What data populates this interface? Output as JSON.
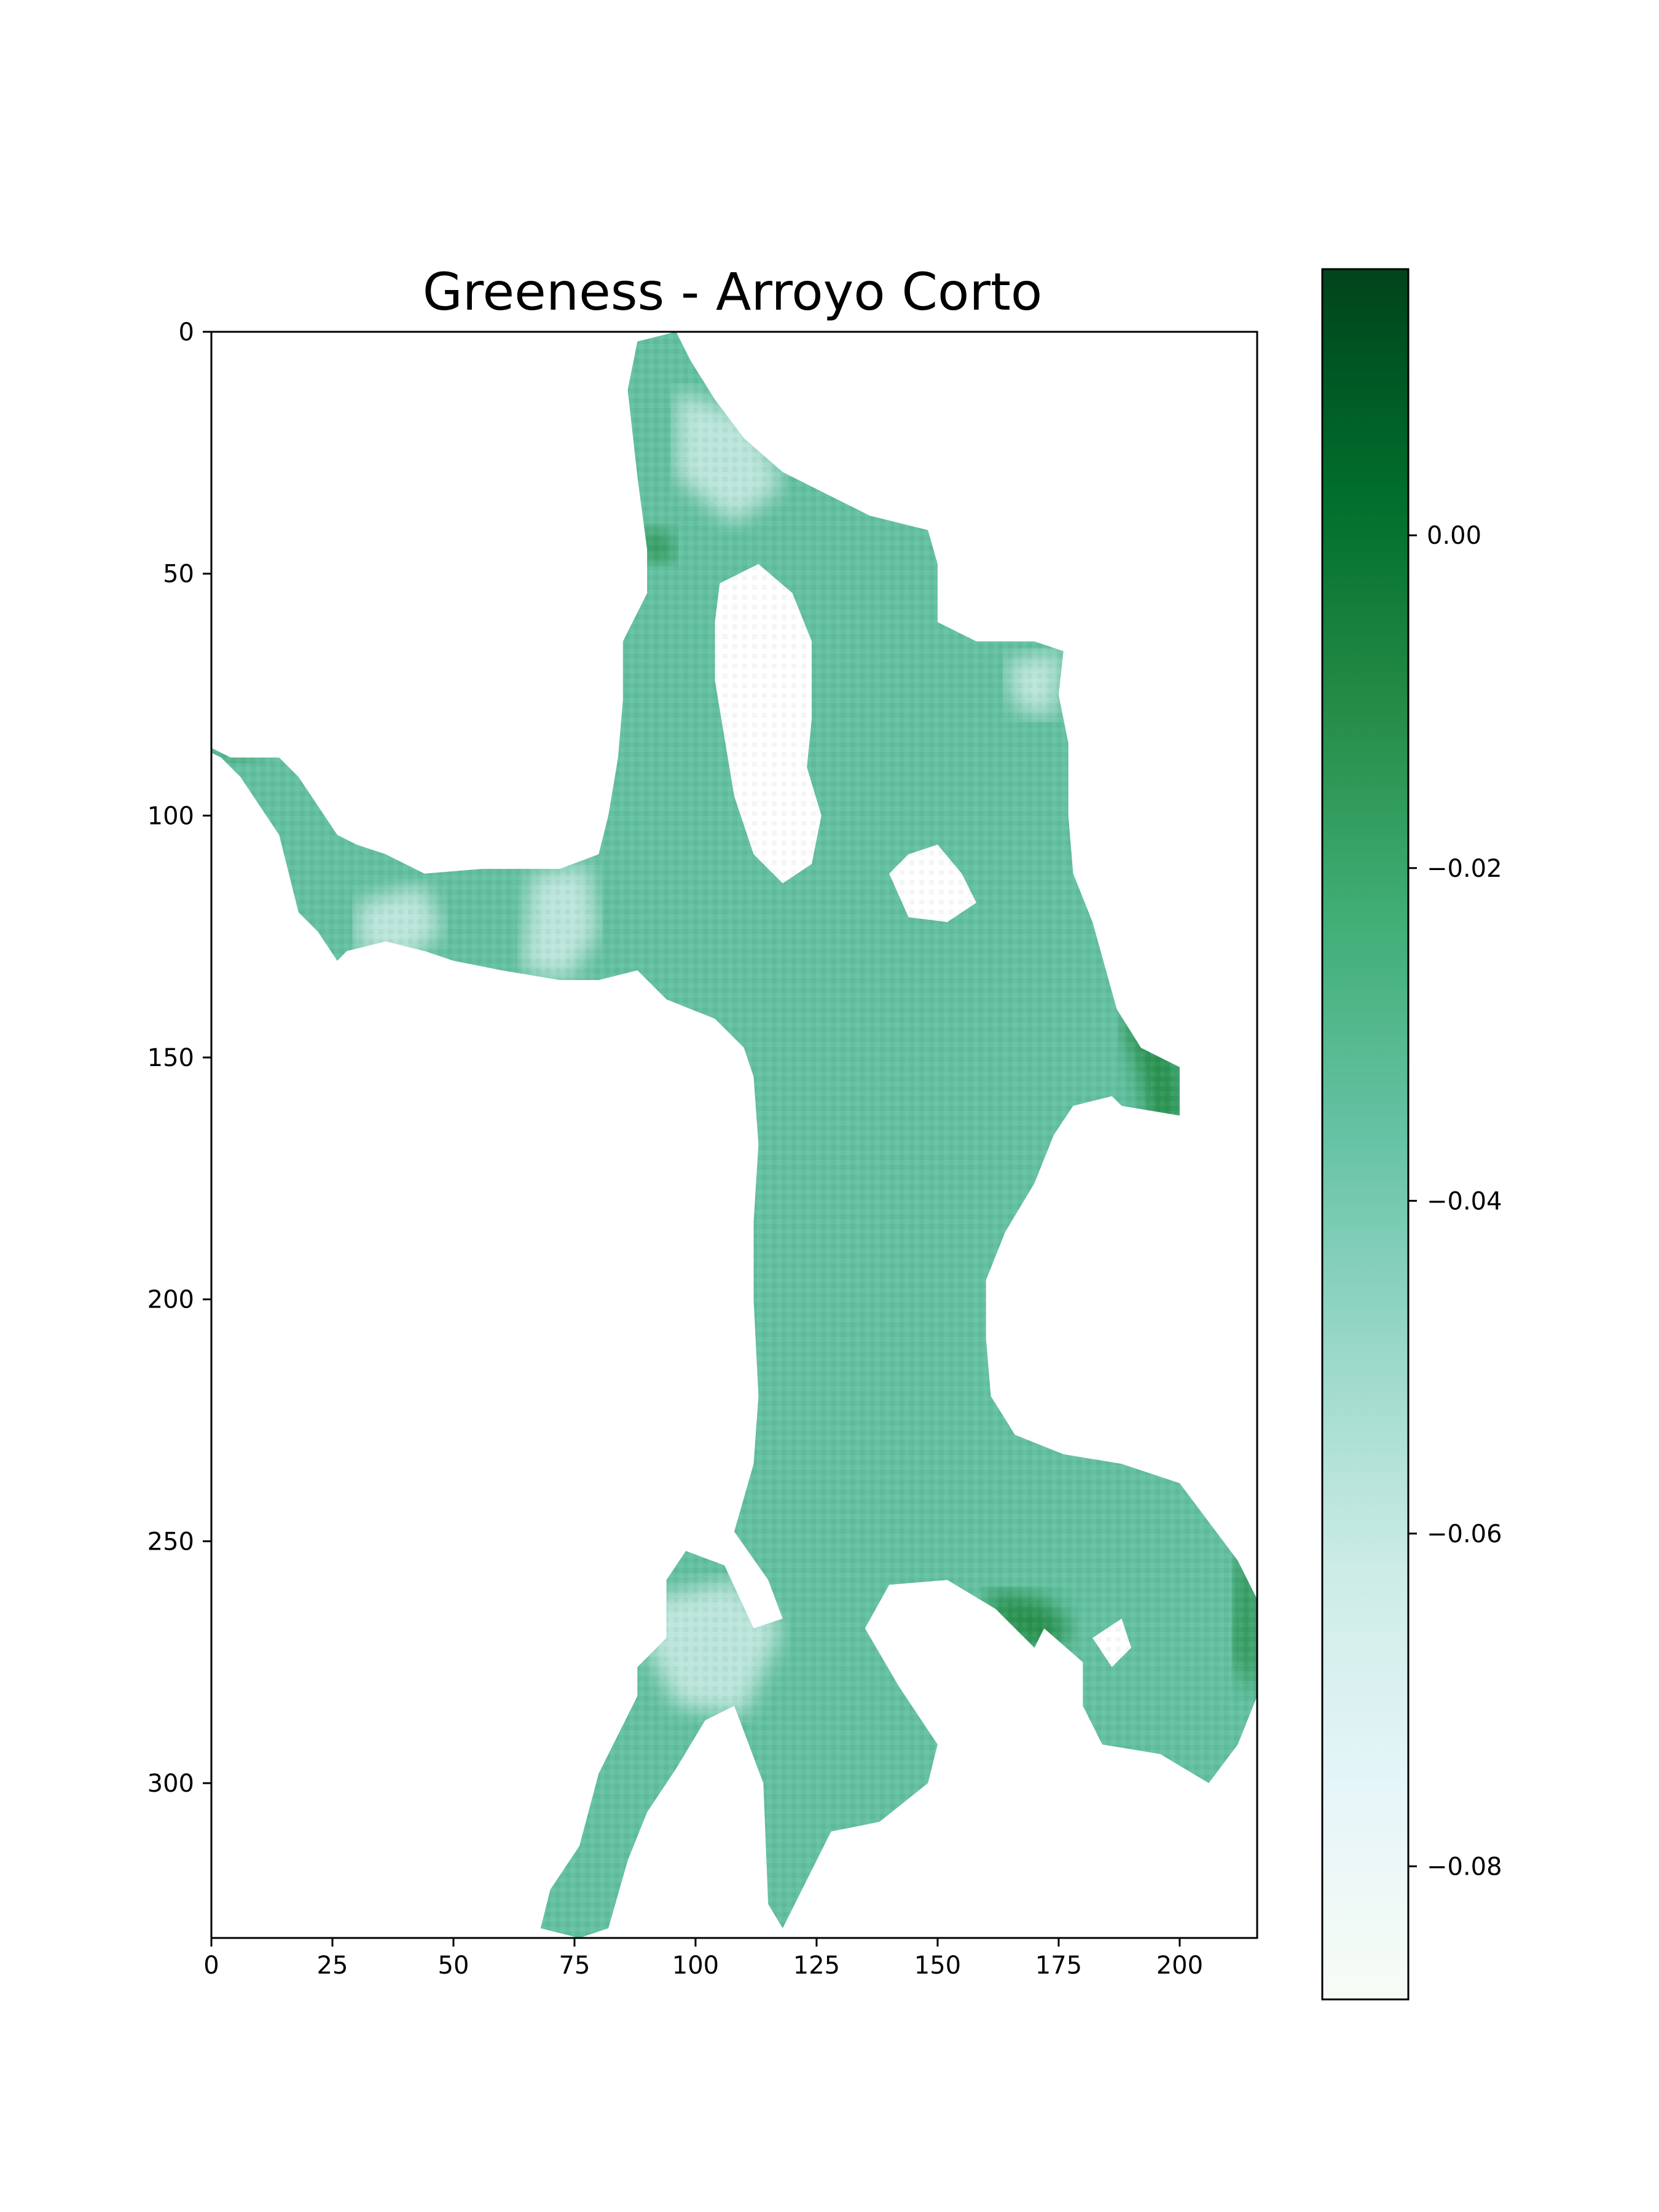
{
  "chart_data": {
    "type": "heatmap",
    "title": "Greeness - Arroyo Corto",
    "xlabel": "",
    "ylabel": "",
    "xlim": [
      0,
      216
    ],
    "ylim": [
      332,
      0
    ],
    "xticks": [
      0,
      25,
      50,
      75,
      100,
      125,
      150,
      175,
      200
    ],
    "yticks": [
      0,
      50,
      100,
      150,
      200,
      250,
      300
    ],
    "xtick_labels": [
      "0",
      "25",
      "50",
      "75",
      "100",
      "125",
      "150",
      "175",
      "200"
    ],
    "ytick_labels": [
      "0",
      "50",
      "100",
      "150",
      "200",
      "250",
      "300"
    ],
    "colormap": "Greens",
    "colorbar": {
      "range": [
        -0.088,
        0.016
      ],
      "ticks": [
        0.0,
        -0.02,
        -0.04,
        -0.06,
        -0.08
      ],
      "tick_labels": [
        "0.00",
        "−0.02",
        "−0.04",
        "−0.06",
        "−0.08"
      ],
      "colors_low_to_high": [
        "#f7fcf5",
        "#e5f5f9",
        "#ccece6",
        "#99d8c9",
        "#66c2a4",
        "#41ae76",
        "#238b45",
        "#006d2c",
        "#00441b"
      ]
    },
    "region_typical_value": -0.035,
    "region_outline": [
      [
        96,
        0
      ],
      [
        99,
        6
      ],
      [
        104,
        14
      ],
      [
        110,
        22
      ],
      [
        118,
        29
      ],
      [
        128,
        34
      ],
      [
        136,
        38
      ],
      [
        148,
        41
      ],
      [
        150,
        48
      ],
      [
        150,
        60
      ],
      [
        158,
        64
      ],
      [
        170,
        64
      ],
      [
        176,
        66
      ],
      [
        175,
        75
      ],
      [
        177,
        85
      ],
      [
        177,
        100
      ],
      [
        178,
        112
      ],
      [
        182,
        122
      ],
      [
        187,
        140
      ],
      [
        192,
        148
      ],
      [
        200,
        152
      ],
      [
        200,
        162
      ],
      [
        188,
        160
      ],
      [
        186,
        158
      ],
      [
        178,
        160
      ],
      [
        174,
        166
      ],
      [
        170,
        176
      ],
      [
        164,
        186
      ],
      [
        160,
        196
      ],
      [
        160,
        208
      ],
      [
        161,
        220
      ],
      [
        166,
        228
      ],
      [
        176,
        232
      ],
      [
        188,
        234
      ],
      [
        200,
        238
      ],
      [
        206,
        246
      ],
      [
        212,
        254
      ],
      [
        216,
        262
      ],
      [
        216,
        282
      ],
      [
        212,
        292
      ],
      [
        206,
        300
      ],
      [
        196,
        294
      ],
      [
        184,
        292
      ],
      [
        180,
        284
      ],
      [
        180,
        275
      ],
      [
        172,
        268
      ],
      [
        170,
        272
      ],
      [
        162,
        264
      ],
      [
        152,
        258
      ],
      [
        140,
        259
      ],
      [
        135,
        268
      ],
      [
        142,
        280
      ],
      [
        150,
        292
      ],
      [
        148,
        300
      ],
      [
        138,
        308
      ],
      [
        128,
        310
      ],
      [
        122,
        322
      ],
      [
        118,
        330
      ],
      [
        115,
        325
      ],
      [
        114,
        300
      ],
      [
        108,
        284
      ],
      [
        102,
        287
      ],
      [
        96,
        297
      ],
      [
        90,
        306
      ],
      [
        86,
        316
      ],
      [
        82,
        330
      ],
      [
        76,
        332
      ],
      [
        68,
        330
      ],
      [
        70,
        322
      ],
      [
        76,
        313
      ],
      [
        80,
        298
      ],
      [
        84,
        290
      ],
      [
        88,
        282
      ],
      [
        88,
        276
      ],
      [
        94,
        270
      ],
      [
        94,
        258
      ],
      [
        98,
        252
      ],
      [
        106,
        255
      ],
      [
        112,
        268
      ],
      [
        118,
        266
      ],
      [
        115,
        258
      ],
      [
        108,
        248
      ],
      [
        112,
        234
      ],
      [
        113,
        220
      ],
      [
        112,
        200
      ],
      [
        112,
        184
      ],
      [
        113,
        168
      ],
      [
        112,
        154
      ],
      [
        110,
        148
      ],
      [
        104,
        142
      ],
      [
        94,
        138
      ],
      [
        88,
        132
      ],
      [
        80,
        134
      ],
      [
        72,
        134
      ],
      [
        60,
        132
      ],
      [
        50,
        130
      ],
      [
        44,
        128
      ],
      [
        36,
        126
      ],
      [
        28,
        128
      ],
      [
        26,
        130
      ],
      [
        22,
        124
      ],
      [
        18,
        120
      ],
      [
        16,
        112
      ],
      [
        14,
        104
      ],
      [
        10,
        98
      ],
      [
        6,
        92
      ],
      [
        2,
        88
      ],
      [
        0,
        87
      ],
      [
        0,
        86
      ],
      [
        4,
        88
      ],
      [
        14,
        88
      ],
      [
        18,
        92
      ],
      [
        22,
        98
      ],
      [
        26,
        104
      ],
      [
        30,
        106
      ],
      [
        36,
        108
      ],
      [
        44,
        112
      ],
      [
        56,
        111
      ],
      [
        72,
        111
      ],
      [
        80,
        108
      ],
      [
        82,
        100
      ],
      [
        84,
        88
      ],
      [
        85,
        76
      ],
      [
        85,
        64
      ],
      [
        88,
        58
      ],
      [
        90,
        54
      ],
      [
        90,
        45
      ],
      [
        88,
        30
      ],
      [
        86,
        12
      ],
      [
        88,
        2
      ]
    ],
    "holes": [
      [
        [
          105,
          52
        ],
        [
          113,
          48
        ],
        [
          120,
          54
        ],
        [
          124,
          64
        ],
        [
          124,
          80
        ],
        [
          123,
          90
        ],
        [
          126,
          100
        ],
        [
          124,
          110
        ],
        [
          118,
          114
        ],
        [
          112,
          108
        ],
        [
          108,
          96
        ],
        [
          106,
          84
        ],
        [
          104,
          72
        ],
        [
          104,
          60
        ]
      ],
      [
        [
          140,
          112
        ],
        [
          144,
          108
        ],
        [
          150,
          106
        ],
        [
          155,
          112
        ],
        [
          158,
          118
        ],
        [
          152,
          122
        ],
        [
          144,
          121
        ]
      ],
      [
        [
          182,
          270
        ],
        [
          188,
          266
        ],
        [
          190,
          272
        ],
        [
          186,
          276
        ]
      ]
    ],
    "dark_edge_patches": [
      [
        [
          188,
          142
        ],
        [
          192,
          140
        ],
        [
          200,
          150
        ],
        [
          201,
          164
        ],
        [
          194,
          166
        ],
        [
          192,
          154
        ]
      ],
      [
        [
          0,
          86
        ],
        [
          12,
          88
        ],
        [
          4,
          89
        ]
      ],
      [
        [
          160,
          260
        ],
        [
          172,
          262
        ],
        [
          178,
          268
        ],
        [
          172,
          274
        ],
        [
          162,
          268
        ]
      ],
      [
        [
          212,
          250
        ],
        [
          216,
          256
        ],
        [
          216,
          282
        ],
        [
          211,
          274
        ]
      ],
      [
        [
          90,
          40
        ],
        [
          96,
          44
        ],
        [
          94,
          48
        ],
        [
          88,
          46
        ]
      ]
    ],
    "light_patches": [
      [
        [
          30,
          118
        ],
        [
          44,
          114
        ],
        [
          48,
          124
        ],
        [
          40,
          130
        ],
        [
          30,
          128
        ]
      ],
      [
        [
          66,
          112
        ],
        [
          78,
          110
        ],
        [
          80,
          124
        ],
        [
          74,
          134
        ],
        [
          64,
          132
        ]
      ],
      [
        [
          90,
          262
        ],
        [
          108,
          258
        ],
        [
          118,
          268
        ],
        [
          110,
          286
        ],
        [
          96,
          284
        ],
        [
          90,
          272
        ]
      ],
      [
        [
          96,
          12
        ],
        [
          112,
          18
        ],
        [
          118,
          32
        ],
        [
          108,
          40
        ],
        [
          96,
          30
        ]
      ],
      [
        [
          164,
          68
        ],
        [
          176,
          66
        ],
        [
          174,
          80
        ],
        [
          166,
          78
        ]
      ]
    ]
  }
}
